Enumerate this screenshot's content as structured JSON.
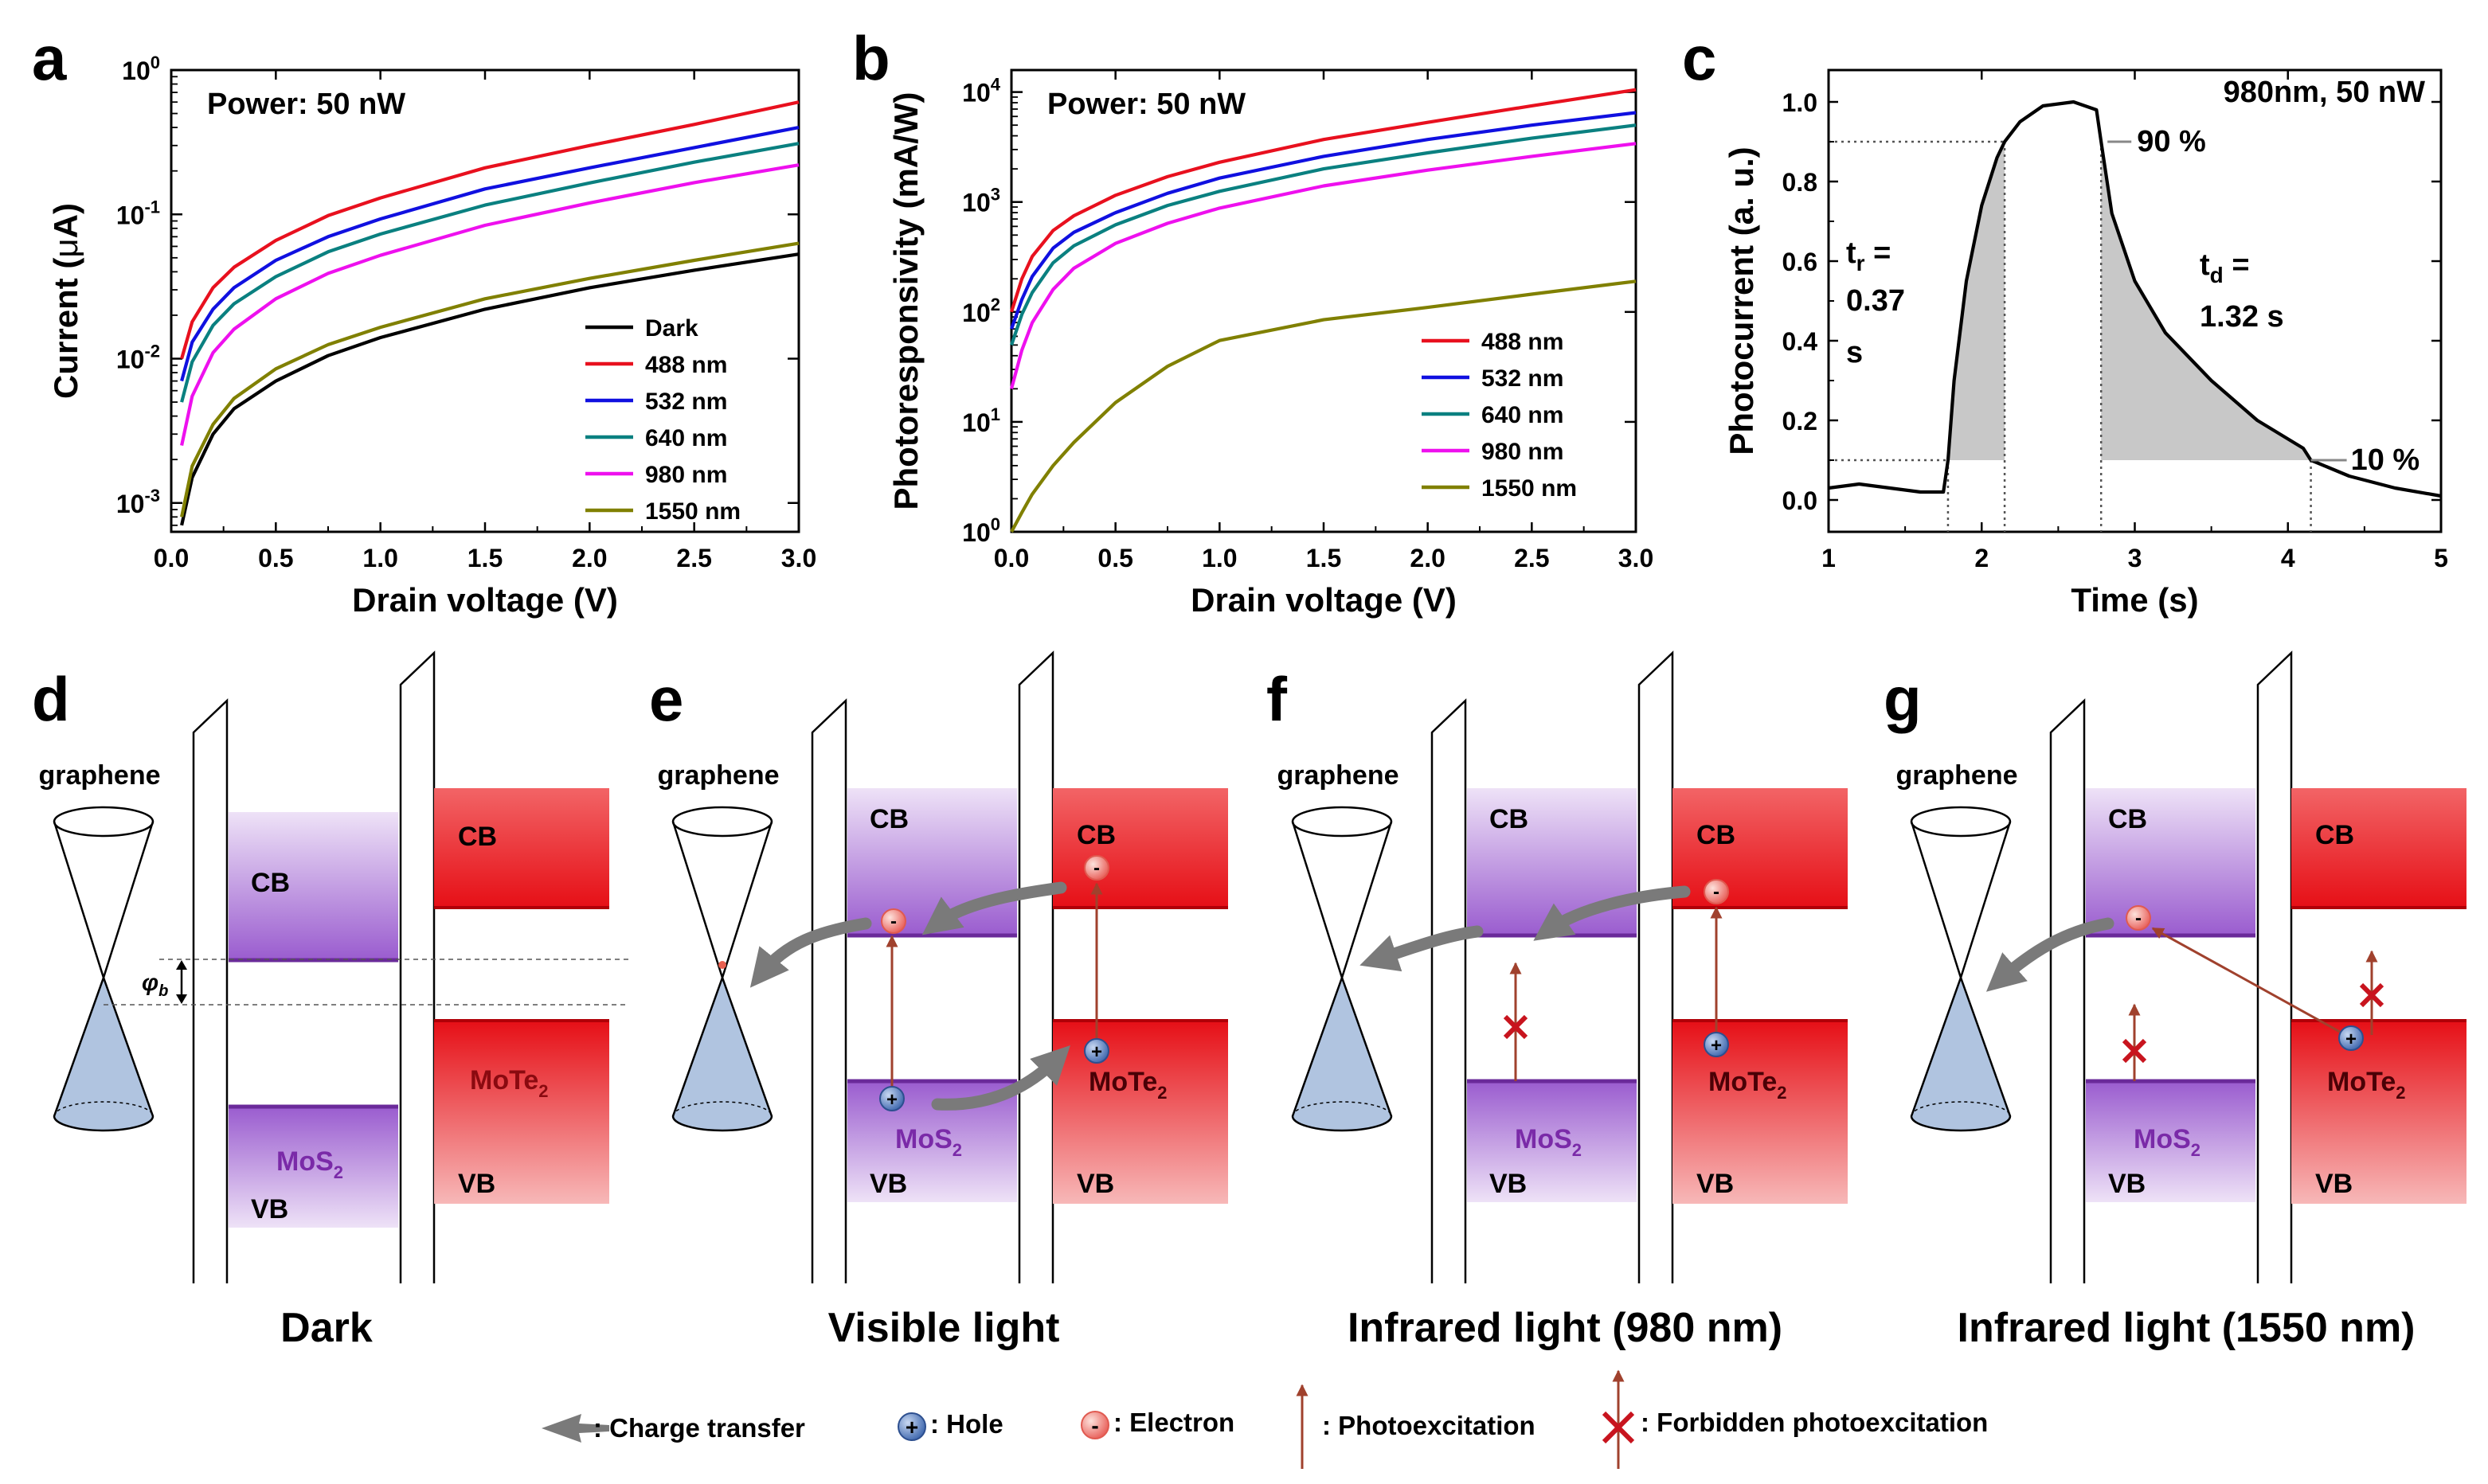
{
  "panel_labels": {
    "a": "a",
    "b": "b",
    "c": "c",
    "d": "d",
    "e": "e",
    "f": "f",
    "g": "g"
  },
  "chart_data": [
    {
      "id": "a",
      "type": "line",
      "yscale": "log",
      "annotation": "Power: 50 nW",
      "xlabel": "Drain voltage (V)",
      "ylabel_parts": [
        "Current (",
        "μ",
        "A)"
      ],
      "xlim": [
        0,
        3.0
      ],
      "ylim_exp": [
        -3.2,
        0
      ],
      "xticks": [
        "0.0",
        "0.5",
        "1.0",
        "1.5",
        "2.0",
        "2.5",
        "3.0"
      ],
      "ytick_exps": [
        0,
        -1,
        -2,
        -3
      ],
      "yticks_base": "10",
      "x": [
        0.05,
        0.1,
        0.2,
        0.3,
        0.5,
        0.75,
        1.0,
        1.5,
        2.0,
        2.5,
        3.0
      ],
      "series": [
        {
          "name": "Dark",
          "color": "#000000",
          "values": [
            0.0007,
            0.0015,
            0.003,
            0.0045,
            0.007,
            0.0105,
            0.014,
            0.022,
            0.031,
            0.041,
            0.053
          ]
        },
        {
          "name": "488 nm",
          "color": "#e8101e",
          "values": [
            0.01,
            0.018,
            0.031,
            0.043,
            0.066,
            0.098,
            0.13,
            0.21,
            0.3,
            0.42,
            0.6
          ]
        },
        {
          "name": "532 nm",
          "color": "#1010e0",
          "values": [
            0.007,
            0.013,
            0.022,
            0.031,
            0.048,
            0.07,
            0.093,
            0.15,
            0.21,
            0.29,
            0.4
          ]
        },
        {
          "name": "640 nm",
          "color": "#0a8080",
          "values": [
            0.005,
            0.0095,
            0.017,
            0.024,
            0.037,
            0.055,
            0.073,
            0.116,
            0.165,
            0.23,
            0.31
          ]
        },
        {
          "name": "980 nm",
          "color": "#ee10ee",
          "values": [
            0.0025,
            0.0055,
            0.011,
            0.016,
            0.026,
            0.039,
            0.052,
            0.084,
            0.12,
            0.166,
            0.22
          ]
        },
        {
          "name": "1550 nm",
          "color": "#808000",
          "values": [
            0.0008,
            0.0018,
            0.0035,
            0.0053,
            0.0085,
            0.0125,
            0.0165,
            0.026,
            0.036,
            0.048,
            0.063
          ]
        }
      ]
    },
    {
      "id": "b",
      "type": "line",
      "yscale": "log",
      "annotation": "Power: 50 nW",
      "xlabel": "Drain voltage (V)",
      "ylabel_parts": [
        "Photoresponsivity (mA/W)"
      ],
      "xlim": [
        0,
        3.0
      ],
      "ylim_exp": [
        0,
        4.2
      ],
      "xticks": [
        "0.0",
        "0.5",
        "1.0",
        "1.5",
        "2.0",
        "2.5",
        "3.0"
      ],
      "ytick_exps": [
        4,
        3,
        2,
        1,
        0
      ],
      "yticks_base": "10",
      "x": [
        0.0,
        0.05,
        0.1,
        0.2,
        0.3,
        0.5,
        0.75,
        1.0,
        1.5,
        2.0,
        2.5,
        3.0
      ],
      "series": [
        {
          "name": "488 nm",
          "color": "#e8101e",
          "values": [
            100,
            200,
            320,
            550,
            750,
            1150,
            1700,
            2300,
            3700,
            5300,
            7500,
            10500
          ]
        },
        {
          "name": "532 nm",
          "color": "#1010e0",
          "values": [
            70,
            130,
            210,
            380,
            530,
            800,
            1200,
            1650,
            2600,
            3700,
            5000,
            6500
          ]
        },
        {
          "name": "640 nm",
          "color": "#0a8080",
          "values": [
            50,
            95,
            150,
            280,
            400,
            620,
            930,
            1250,
            2000,
            2800,
            3800,
            5000
          ]
        },
        {
          "name": "980 nm",
          "color": "#ee10ee",
          "values": [
            20,
            45,
            80,
            160,
            250,
            420,
            640,
            880,
            1400,
            1950,
            2600,
            3400
          ]
        },
        {
          "name": "1550 nm",
          "color": "#808000",
          "values": [
            1.0,
            1.5,
            2.2,
            4,
            6.5,
            15,
            32,
            55,
            85,
            110,
            145,
            190
          ]
        }
      ]
    },
    {
      "id": "c",
      "type": "line",
      "annotation": "980nm, 50 nW",
      "xlabel": "Time (s)",
      "ylabel_parts": [
        "Photocurrent (a. u.)"
      ],
      "xlim": [
        1,
        5
      ],
      "ylim": [
        -0.08,
        1.08
      ],
      "xticks": [
        1,
        2,
        3,
        4,
        5
      ],
      "yticks": [
        0.0,
        0.2,
        0.4,
        0.6,
        0.8,
        1.0
      ],
      "x": [
        1.0,
        1.2,
        1.4,
        1.6,
        1.75,
        1.78,
        1.82,
        1.9,
        2.0,
        2.1,
        2.15,
        2.25,
        2.4,
        2.6,
        2.75,
        2.78,
        2.85,
        3.0,
        3.2,
        3.5,
        3.8,
        4.1,
        4.15,
        4.4,
        4.7,
        5.0
      ],
      "values": [
        0.03,
        0.04,
        0.03,
        0.02,
        0.02,
        0.1,
        0.3,
        0.55,
        0.74,
        0.86,
        0.9,
        0.95,
        0.99,
        1.0,
        0.98,
        0.9,
        0.72,
        0.55,
        0.42,
        0.3,
        0.2,
        0.13,
        0.1,
        0.06,
        0.03,
        0.01
      ],
      "rise_label_lines": [
        "t",
        "r",
        " =",
        "0.37",
        "s"
      ],
      "decay_label_lines": [
        "t",
        "d",
        " =",
        "1.32 s"
      ],
      "level_90": "90 %",
      "level_10": "10 %",
      "rise_interval": [
        1.78,
        2.15
      ],
      "decay_interval": [
        2.78,
        4.15
      ]
    }
  ],
  "diagrams": {
    "graphene_label": "graphene",
    "cb": "CB",
    "vb": "VB",
    "mos2": "MoS",
    "mote2": "MoTe",
    "sub2": "2",
    "phi": "φ",
    "phi_sub": "b",
    "captions": {
      "d": "Dark",
      "e": "Visible light",
      "f": "Infrared light (980 nm)",
      "g": "Infrared light (1550 nm)"
    }
  },
  "legend": {
    "charge_transfer": ": Charge transfer",
    "hole": ": Hole",
    "electron": ": Electron",
    "photoexcitation": ": Photoexcitation",
    "forbidden": ": Forbidden photoexcitation"
  },
  "colors": {
    "band_purple": "#9e64d2",
    "band_red": "#e81018",
    "arrow_brown": "#a0412d",
    "cross_red": "#c8141e",
    "hole_blue": "#4c78c0",
    "electron_pink": "#f07870",
    "cone_blue": "#b0c4e0",
    "grey_arrow": "#7a7a7a"
  }
}
